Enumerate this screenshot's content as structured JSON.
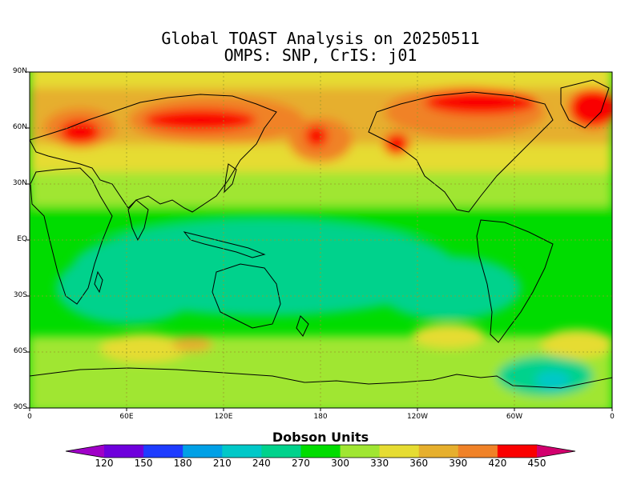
{
  "title_line1": "Global TOAST Analysis on 20250511",
  "title_line2": "OMPS: SNP, CrIS: j01",
  "lat_labels": [
    "90N",
    "60N",
    "30N",
    "EQ",
    "30S",
    "60S",
    "90S"
  ],
  "lon_labels": [
    "0",
    "60E",
    "120E",
    "180",
    "120W",
    "60W",
    "0"
  ],
  "colorbar": {
    "title": "Dobson Units",
    "ticks": [
      "120",
      "150",
      "180",
      "210",
      "240",
      "270",
      "300",
      "330",
      "360",
      "390",
      "420",
      "450"
    ],
    "colors": [
      "#a000c8",
      "#6e00dc",
      "#1e3cff",
      "#00a0e6",
      "#00c8c8",
      "#00d28c",
      "#00dc00",
      "#a0e632",
      "#e6dc32",
      "#e6af2d",
      "#f08228",
      "#fa0000",
      "#d2006e"
    ]
  },
  "map": {
    "units": "Dobson Units",
    "lat_range": [
      -90,
      90
    ],
    "lon_range": [
      0,
      360
    ],
    "contour_interval": 30
  }
}
